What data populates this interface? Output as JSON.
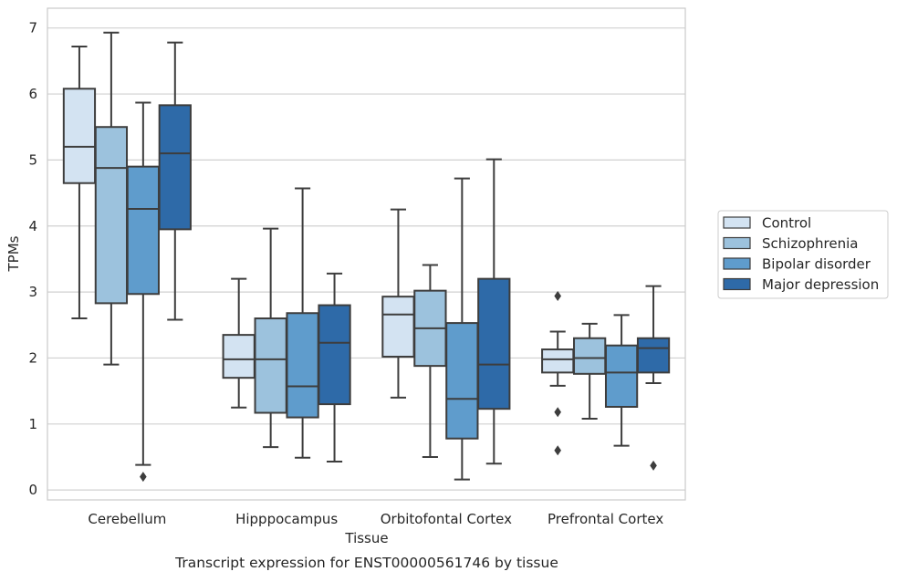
{
  "chart_data": {
    "type": "boxplot",
    "title": "",
    "caption": "Transcript expression for ENST00000561746 by tissue",
    "xlabel": "Tissue",
    "ylabel": "TPMs",
    "ylim": [
      -0.15,
      7.3
    ],
    "yticks": [
      0,
      1,
      2,
      3,
      4,
      5,
      6,
      7
    ],
    "grid": "horizontal",
    "legend_position": "right",
    "categories": [
      "Cerebellum",
      "Hipppocampus",
      "Orbitofontal Cortex",
      "Prefrontal Cortex"
    ],
    "series": [
      {
        "name": "Control",
        "color": "#d3e3f2",
        "boxes": [
          {
            "whislo": 2.6,
            "q1": 4.65,
            "med": 5.2,
            "q3": 6.08,
            "whishi": 6.72,
            "fliers": []
          },
          {
            "whislo": 1.25,
            "q1": 1.7,
            "med": 1.98,
            "q3": 2.35,
            "whishi": 3.2,
            "fliers": []
          },
          {
            "whislo": 1.4,
            "q1": 2.02,
            "med": 2.66,
            "q3": 2.93,
            "whishi": 4.25,
            "fliers": []
          },
          {
            "whislo": 1.58,
            "q1": 1.78,
            "med": 1.98,
            "q3": 2.13,
            "whishi": 2.4,
            "fliers": [
              2.94,
              1.18,
              0.6
            ]
          }
        ]
      },
      {
        "name": "Schizophrenia",
        "color": "#9cc2dd",
        "boxes": [
          {
            "whislo": 1.9,
            "q1": 2.83,
            "med": 4.88,
            "q3": 5.5,
            "whishi": 6.93,
            "fliers": []
          },
          {
            "whislo": 0.65,
            "q1": 1.17,
            "med": 1.98,
            "q3": 2.6,
            "whishi": 3.96,
            "fliers": []
          },
          {
            "whislo": 0.5,
            "q1": 1.88,
            "med": 2.45,
            "q3": 3.02,
            "whishi": 3.41,
            "fliers": []
          },
          {
            "whislo": 1.08,
            "q1": 1.76,
            "med": 2.0,
            "q3": 2.3,
            "whishi": 2.52,
            "fliers": []
          }
        ]
      },
      {
        "name": "Bipolar disorder",
        "color": "#5f9ccc",
        "boxes": [
          {
            "whislo": 0.38,
            "q1": 2.97,
            "med": 4.26,
            "q3": 4.9,
            "whishi": 5.87,
            "fliers": [
              0.2
            ]
          },
          {
            "whislo": 0.49,
            "q1": 1.1,
            "med": 1.57,
            "q3": 2.68,
            "whishi": 4.57,
            "fliers": []
          },
          {
            "whislo": 0.16,
            "q1": 0.78,
            "med": 1.38,
            "q3": 2.53,
            "whishi": 4.72,
            "fliers": []
          },
          {
            "whislo": 0.67,
            "q1": 1.26,
            "med": 1.78,
            "q3": 2.19,
            "whishi": 2.65,
            "fliers": []
          }
        ]
      },
      {
        "name": "Major depression",
        "color": "#2e6aa8",
        "boxes": [
          {
            "whislo": 2.58,
            "q1": 3.95,
            "med": 5.1,
            "q3": 5.83,
            "whishi": 6.78,
            "fliers": []
          },
          {
            "whislo": 0.43,
            "q1": 1.3,
            "med": 2.23,
            "q3": 2.8,
            "whishi": 3.28,
            "fliers": []
          },
          {
            "whislo": 0.4,
            "q1": 1.23,
            "med": 1.9,
            "q3": 3.2,
            "whishi": 5.01,
            "fliers": []
          },
          {
            "whislo": 1.62,
            "q1": 1.78,
            "med": 2.15,
            "q3": 2.3,
            "whishi": 3.09,
            "fliers": [
              0.37
            ]
          }
        ]
      }
    ]
  }
}
